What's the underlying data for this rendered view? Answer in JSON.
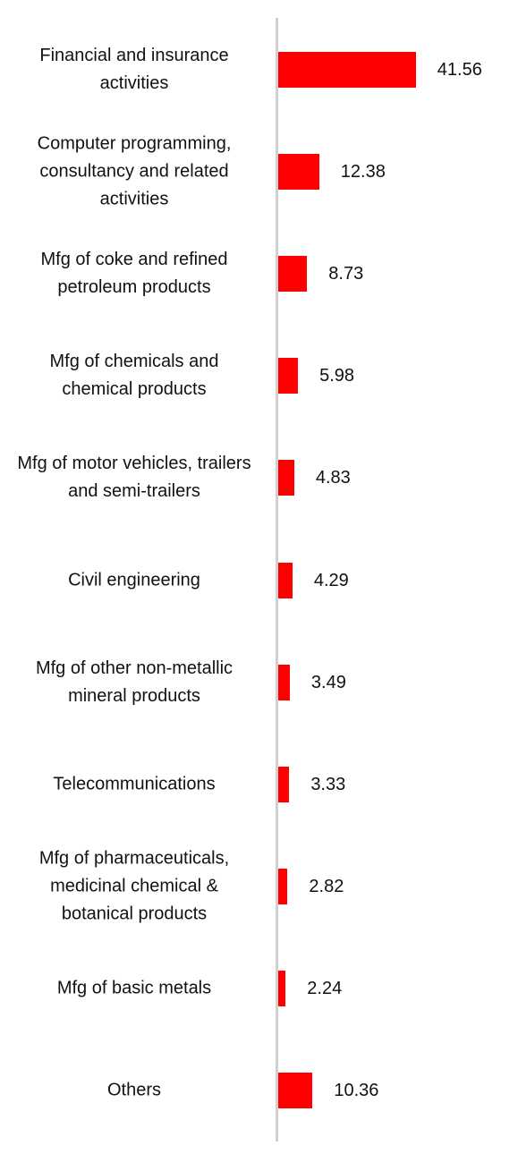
{
  "chart_data": {
    "type": "bar",
    "orientation": "horizontal",
    "color": "#ff0000",
    "categories": [
      "Financial and insurance activities",
      "Computer programming, consultancy and related activities",
      "Mfg of coke and refined petroleum products",
      "Mfg of chemicals and chemical products",
      "Mfg of motor vehicles, trailers and semi-trailers",
      "Civil engineering",
      "Mfg of other non-metallic mineral products",
      "Telecommunications",
      "Mfg of pharmaceuticals, medicinal chemical & botanical products",
      "Mfg of basic metals",
      "Others"
    ],
    "values": [
      41.56,
      12.38,
      8.73,
      5.98,
      4.83,
      4.29,
      3.49,
      3.33,
      2.82,
      2.24,
      10.36
    ]
  }
}
